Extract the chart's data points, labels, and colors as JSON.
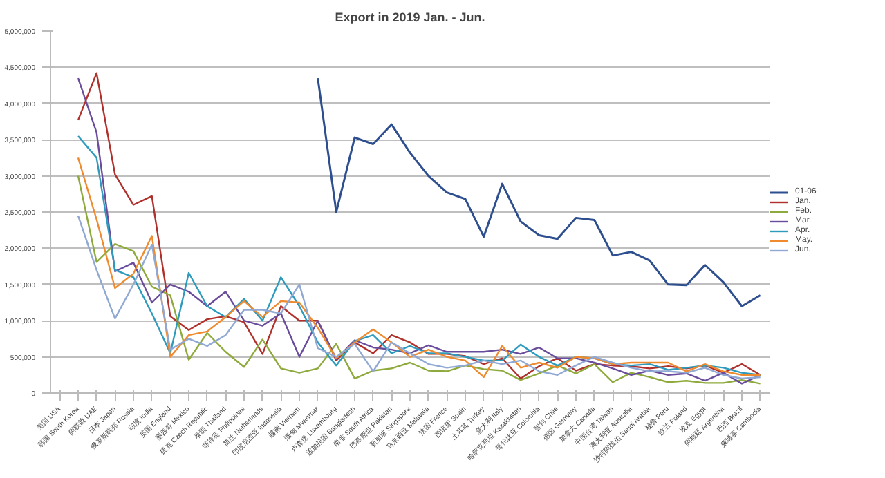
{
  "chart_data": {
    "type": "line",
    "title": "Export in 2019 Jan. - Jun.",
    "categories": [
      "美国 USA",
      "韩国 South Korea",
      "阿联酋 UAE",
      "日本 Japan",
      "俄罗斯联邦 Russia",
      "印度 India",
      "英国 England",
      "墨西哥 Mexico",
      "捷克 Czech Republic",
      "泰国 Thailand",
      "菲律宾 Philippines",
      "荷兰 Netherlands",
      "印度尼西亚 Indonesia",
      "越南 Vietnam",
      "缅甸 Myanmar",
      "卢森堡 Luxembourg",
      "孟加拉国 Bangladesh",
      "南非 South Africa",
      "巴基斯坦 Pakistan",
      "新加坡 Singapore",
      "马来西亚 Malaysia",
      "法国 France",
      "西班牙 Spain",
      "土耳其 Turkey",
      "意大利 Italy",
      "哈萨克斯坦 Kazakhstan",
      "哥伦比亚 Colombia",
      "智利 Chile",
      "德国 Germany",
      "加拿大 Canada",
      "中国台湾 Taiwan",
      "澳大利亚 Australia",
      "沙特阿拉伯 Saudi Arabia",
      "秘鲁 Peru",
      "波兰 Poland",
      "埃及 Egypt",
      "阿根廷 Argentina",
      "巴西 Brazil",
      "柬埔寨 Cambodia"
    ],
    "series": [
      {
        "name": "01-06",
        "color": "#2e4f8f",
        "values": [
          null,
          null,
          null,
          null,
          null,
          null,
          null,
          null,
          null,
          null,
          null,
          null,
          null,
          null,
          4350000,
          2500000,
          3530000,
          3440000,
          3710000,
          3320000,
          3000000,
          2770000,
          2680000,
          2160000,
          2890000,
          2370000,
          2180000,
          2130000,
          2420000,
          2390000,
          1900000,
          1950000,
          1830000,
          1500000,
          1490000,
          1770000,
          1530000,
          1200000,
          1350000
        ]
      },
      {
        "name": "Jan.",
        "color": "#b0302c",
        "values": [
          null,
          3770000,
          4420000,
          3020000,
          2600000,
          2720000,
          1060000,
          870000,
          1020000,
          1060000,
          980000,
          540000,
          1200000,
          1000000,
          1000000,
          450000,
          700000,
          550000,
          800000,
          700000,
          540000,
          540000,
          510000,
          400000,
          480000,
          200000,
          370000,
          480000,
          310000,
          400000,
          380000,
          370000,
          340000,
          370000,
          340000,
          380000,
          280000,
          400000,
          250000
        ]
      },
      {
        "name": "Feb.",
        "color": "#8eaa3c",
        "values": [
          null,
          3000000,
          1810000,
          2060000,
          1960000,
          1470000,
          1350000,
          460000,
          830000,
          570000,
          360000,
          740000,
          340000,
          280000,
          340000,
          680000,
          200000,
          310000,
          340000,
          420000,
          310000,
          300000,
          380000,
          330000,
          310000,
          180000,
          270000,
          380000,
          270000,
          400000,
          150000,
          280000,
          220000,
          150000,
          170000,
          140000,
          140000,
          180000,
          130000
        ]
      },
      {
        "name": "Mar.",
        "color": "#6a4c9c",
        "values": [
          null,
          4350000,
          3600000,
          1680000,
          1800000,
          1250000,
          1500000,
          1400000,
          1200000,
          1400000,
          1000000,
          930000,
          1100000,
          500000,
          1000000,
          470000,
          730000,
          630000,
          600000,
          550000,
          660000,
          570000,
          570000,
          570000,
          600000,
          540000,
          630000,
          480000,
          480000,
          420000,
          340000,
          250000,
          310000,
          250000,
          270000,
          170000,
          280000,
          130000,
          250000
        ]
      },
      {
        "name": "Apr.",
        "color": "#2e9bbd",
        "values": [
          null,
          3550000,
          3250000,
          1700000,
          1600000,
          1100000,
          550000,
          1660000,
          1200000,
          1050000,
          1300000,
          1000000,
          1600000,
          1200000,
          700000,
          380000,
          720000,
          800000,
          550000,
          650000,
          550000,
          550000,
          500000,
          450000,
          450000,
          670000,
          500000,
          380000,
          500000,
          480000,
          400000,
          380000,
          400000,
          320000,
          350000,
          380000,
          350000,
          280000,
          250000
        ]
      },
      {
        "name": "May.",
        "color": "#f08a2e",
        "values": [
          null,
          3250000,
          2400000,
          1450000,
          1650000,
          2170000,
          500000,
          800000,
          850000,
          1050000,
          1270000,
          1050000,
          1270000,
          1250000,
          900000,
          480000,
          700000,
          880000,
          700000,
          500000,
          600000,
          500000,
          450000,
          220000,
          650000,
          350000,
          420000,
          350000,
          500000,
          480000,
          400000,
          420000,
          420000,
          420000,
          300000,
          400000,
          300000,
          250000,
          250000
        ]
      },
      {
        "name": "Jun.",
        "color": "#8fa8d4",
        "values": [
          null,
          2450000,
          1700000,
          1030000,
          1500000,
          2050000,
          600000,
          750000,
          650000,
          800000,
          1150000,
          1150000,
          1100000,
          1500000,
          620000,
          500000,
          680000,
          300000,
          700000,
          550000,
          400000,
          350000,
          380000,
          450000,
          400000,
          450000,
          300000,
          250000,
          380000,
          500000,
          420000,
          350000,
          300000,
          300000,
          280000,
          350000,
          250000,
          200000,
          220000
        ]
      }
    ],
    "ylim": [
      0,
      5000000
    ],
    "yticks": [
      0,
      {
        "value": 500000,
        "label": "500,000"
      },
      {
        "value": 1000000,
        "label": "1,000,000"
      },
      {
        "value": 1500000,
        "label": "1,500,000"
      },
      {
        "value": 2000000,
        "label": "2,000,000"
      },
      {
        "value": 2500000,
        "label": "2,500,000"
      },
      {
        "value": 3000000,
        "label": "3,000,000"
      },
      {
        "value": 3500000,
        "label": "3,500,000"
      },
      {
        "value": 4000000,
        "label": "4,000,000"
      },
      {
        "value": 4500000,
        "label": "4,500,000"
      },
      {
        "value": 5000000,
        "label": "5,000,000"
      }
    ],
    "grid": "y",
    "legend": "right"
  }
}
